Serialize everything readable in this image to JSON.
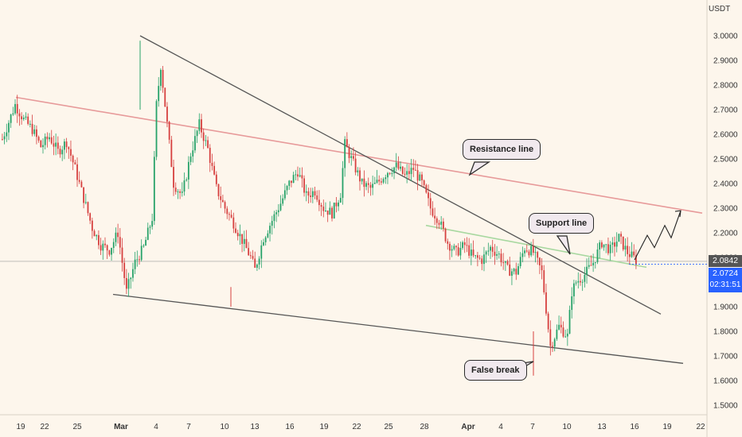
{
  "currency": "USDT",
  "price_axis": {
    "ticks": [
      "3.0000",
      "2.9000",
      "2.8000",
      "2.7000",
      "2.6000",
      "2.5000",
      "2.4000",
      "2.3000",
      "2.2000",
      "2.1000",
      "2.0000",
      "1.9000",
      "1.8000",
      "1.7000",
      "1.6000",
      "1.5000"
    ],
    "values": [
      3.0,
      2.9,
      2.8,
      2.7,
      2.6,
      2.5,
      2.4,
      2.3,
      2.2,
      2.1,
      2.0,
      1.9,
      1.8,
      1.7,
      1.6,
      1.5
    ]
  },
  "time_axis": {
    "labels": [
      "19",
      "22",
      "25",
      "Mar",
      "4",
      "7",
      "10",
      "13",
      "16",
      "19",
      "22",
      "25",
      "28",
      "Apr",
      "4",
      "7",
      "10",
      "13",
      "16",
      "19",
      "22"
    ],
    "bold": [
      "Mar",
      "Apr"
    ]
  },
  "price_tags": {
    "reference": "2.0842",
    "current": "2.0724",
    "countdown": "02:31:51"
  },
  "annotations": {
    "resistance": "Resistance line",
    "support": "Support line",
    "false_break": "False break"
  },
  "colors": {
    "background": "#fdf6ec",
    "up_candle": "#26a269",
    "down_candle": "#d6403f",
    "resistance_line": "#e79a9a",
    "support_line": "#a8d8a0",
    "trend_line": "#555555",
    "current_tag": "#2962ff",
    "reference_tag": "#555555"
  },
  "chart_data": {
    "type": "candlestick",
    "symbol_quote": "USDT",
    "ylim": [
      1.46,
      3.08
    ],
    "price_levels": {
      "reference": 2.0842,
      "current": 2.0724
    },
    "lines": [
      {
        "name": "Resistance line",
        "from": {
          "date": "Feb 19",
          "price": 2.75
        },
        "to": {
          "date": "Apr 22",
          "price": 2.28
        }
      },
      {
        "name": "Support line",
        "from": {
          "date": "Mar 28",
          "price": 2.23
        },
        "to": {
          "date": "Apr 17",
          "price": 2.06
        }
      },
      {
        "name": "Upper wedge line",
        "from": {
          "date": "Mar 3",
          "price": 3.0
        },
        "to": {
          "date": "Apr 18",
          "price": 1.87
        }
      },
      {
        "name": "Lower wedge line",
        "from": {
          "date": "Feb 29",
          "price": 1.95
        },
        "to": {
          "date": "Apr 21",
          "price": 1.67
        }
      }
    ],
    "projection": [
      {
        "date": "Apr 16",
        "price": 2.09
      },
      {
        "date": "Apr 17",
        "price": 2.19
      },
      {
        "date": "Apr 17",
        "price": 2.14
      },
      {
        "date": "Apr 18",
        "price": 2.23
      },
      {
        "date": "Apr 18",
        "price": 2.18
      },
      {
        "date": "Apr 19",
        "price": 2.29
      }
    ],
    "path_points": [
      [
        0,
        2.58
      ],
      [
        6,
        2.72
      ],
      [
        10,
        2.66
      ],
      [
        14,
        2.62
      ],
      [
        18,
        2.55
      ],
      [
        22,
        2.59
      ],
      [
        26,
        2.53
      ],
      [
        30,
        2.57
      ],
      [
        34,
        2.46
      ],
      [
        38,
        2.34
      ],
      [
        42,
        2.22
      ],
      [
        46,
        2.15
      ],
      [
        50,
        2.13
      ],
      [
        54,
        2.2
      ],
      [
        58,
        1.96
      ],
      [
        62,
        2.08
      ],
      [
        66,
        2.14
      ],
      [
        70,
        2.26
      ],
      [
        72,
        2.72
      ],
      [
        74,
        2.88
      ],
      [
        76,
        2.72
      ],
      [
        80,
        2.4
      ],
      [
        84,
        2.35
      ],
      [
        88,
        2.52
      ],
      [
        92,
        2.64
      ],
      [
        96,
        2.54
      ],
      [
        100,
        2.38
      ],
      [
        104,
        2.3
      ],
      [
        108,
        2.24
      ],
      [
        112,
        2.17
      ],
      [
        116,
        2.1
      ],
      [
        118,
        2.05
      ],
      [
        122,
        2.18
      ],
      [
        126,
        2.25
      ],
      [
        130,
        2.32
      ],
      [
        134,
        2.4
      ],
      [
        138,
        2.45
      ],
      [
        142,
        2.35
      ],
      [
        146,
        2.37
      ],
      [
        150,
        2.3
      ],
      [
        154,
        2.28
      ],
      [
        158,
        2.36
      ],
      [
        160,
        2.56
      ],
      [
        164,
        2.48
      ],
      [
        168,
        2.4
      ],
      [
        172,
        2.38
      ],
      [
        176,
        2.41
      ],
      [
        180,
        2.45
      ],
      [
        184,
        2.47
      ],
      [
        188,
        2.43
      ],
      [
        192,
        2.46
      ],
      [
        196,
        2.4
      ],
      [
        200,
        2.3
      ],
      [
        204,
        2.25
      ],
      [
        208,
        2.16
      ],
      [
        212,
        2.12
      ],
      [
        216,
        2.15
      ],
      [
        220,
        2.1
      ],
      [
        224,
        2.09
      ],
      [
        228,
        2.14
      ],
      [
        232,
        2.11
      ],
      [
        236,
        2.05
      ],
      [
        240,
        2.04
      ],
      [
        244,
        2.14
      ],
      [
        248,
        2.12
      ],
      [
        252,
        2.04
      ],
      [
        256,
        1.74
      ],
      [
        260,
        1.82
      ],
      [
        264,
        1.78
      ],
      [
        266,
        1.96
      ],
      [
        268,
        2.0
      ],
      [
        272,
        2.03
      ],
      [
        276,
        2.08
      ],
      [
        280,
        2.16
      ],
      [
        284,
        2.13
      ],
      [
        288,
        2.18
      ],
      [
        292,
        2.12
      ],
      [
        296,
        2.09
      ]
    ],
    "candle_count": 300,
    "first_date": "Feb 19",
    "last_date": "Apr 16"
  }
}
